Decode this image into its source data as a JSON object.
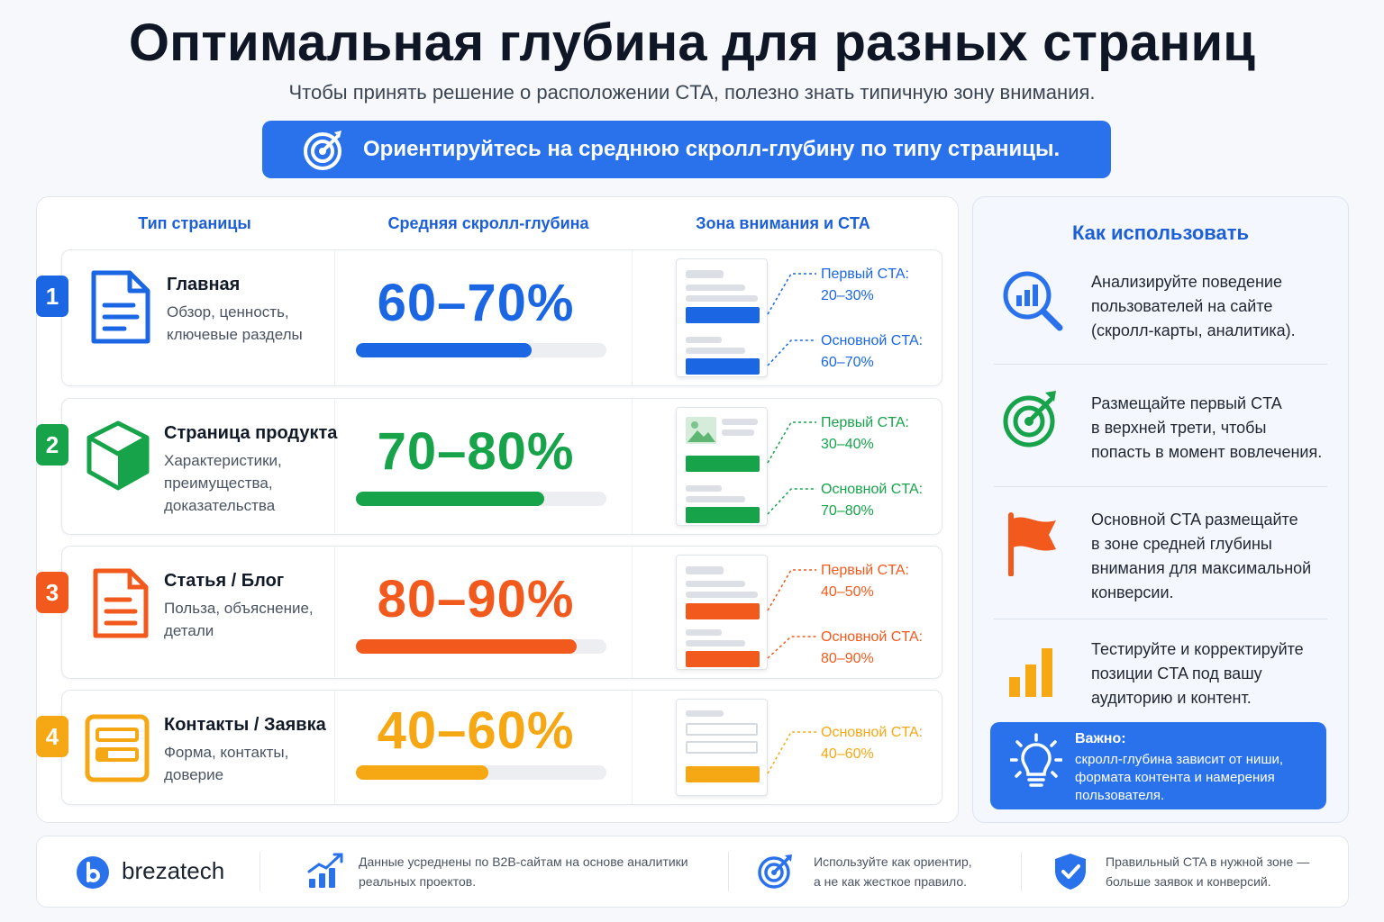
{
  "header": {
    "title": "Оптимальная глубина для разных страниц",
    "subtitle": "Чтобы принять решение о расположении CTA, полезно знать типичную зону внимания.",
    "banner": "Ориентируйтесь на среднюю скролл-глубину по типу страницы."
  },
  "columns": [
    "Тип страницы",
    "Средняя скролл-глубина",
    "Зона внимания и CTA"
  ],
  "rows": [
    {
      "num": "1",
      "name": "Главная",
      "desc": [
        "Обзор, ценность,",
        "ключевые разделы"
      ],
      "depth": "60–70%",
      "fill": 0.7,
      "color": "#1a66e3",
      "icon": "document-icon",
      "ctas": [
        {
          "label": "Первый CTA:",
          "value": "20–30%"
        },
        {
          "label": "Основной CTA:",
          "value": "60–70%"
        }
      ]
    },
    {
      "num": "2",
      "name": "Страница продукта",
      "desc": [
        "Характеристики,",
        "преимущества,",
        "доказательства"
      ],
      "depth": "70–80%",
      "fill": 0.75,
      "color": "#16a34a",
      "icon": "box-icon",
      "ctas": [
        {
          "label": "Первый CTA:",
          "value": "30–40%"
        },
        {
          "label": "Основной CTA:",
          "value": "70–80%"
        }
      ]
    },
    {
      "num": "3",
      "name": "Статья / Блог",
      "desc": [
        "Польза, объяснение,",
        "детали"
      ],
      "depth": "80–90%",
      "fill": 0.88,
      "color": "#f25a1d",
      "icon": "article-icon",
      "ctas": [
        {
          "label": "Первый CTA:",
          "value": "40–50%"
        },
        {
          "label": "Основной CTA:",
          "value": "80–90%"
        }
      ]
    },
    {
      "num": "4",
      "name": "Контакты / Заявка",
      "desc": [
        "Форма, контакты,",
        "доверие"
      ],
      "depth": "40–60%",
      "fill": 0.53,
      "color": "#f5a714",
      "icon": "form-icon",
      "ctas": [
        {
          "label": "Основной CTA:",
          "value": "40–60%"
        }
      ]
    }
  ],
  "side": {
    "title": "Как использовать",
    "tips": [
      {
        "icon": "analytics-search-icon",
        "lines": [
          "Анализируйте поведение",
          "пользователей на сайте",
          "(скролл-карты, аналитика)."
        ]
      },
      {
        "icon": "target-icon",
        "lines": [
          "Размещайте первый CTA",
          "в верхней трети, чтобы",
          "попасть в момент вовлечения."
        ]
      },
      {
        "icon": "flag-icon",
        "lines": [
          "Основной CTA размещайте",
          "в зоне средней глубины",
          "внимания для максимальной",
          "конверсии."
        ]
      },
      {
        "icon": "bar-chart-icon",
        "lines": [
          "Тестируйте и корректируйте",
          "позиции CTA под вашу",
          "аудиторию и контент."
        ]
      }
    ],
    "important_title": "Важно:",
    "important_lines": [
      "скролл-глубина зависит от ниши,",
      "формата контента и намерения",
      "пользователя."
    ]
  },
  "footer": {
    "brand": "brezatech",
    "notes": [
      [
        "Данные усреднены по B2B-сайтам на основе аналитики",
        "реальных проектов."
      ],
      [
        "Используйте как ориентир,",
        "а не как жесткое правило."
      ],
      [
        "Правильный CTA в нужной зоне —",
        "больше заявок и конверсий."
      ]
    ]
  },
  "colors": {
    "accent": "#2a72ec",
    "blue": "#1a66e3",
    "green": "#16a34a",
    "orange": "#f25a1d",
    "yellow": "#f5a714"
  }
}
